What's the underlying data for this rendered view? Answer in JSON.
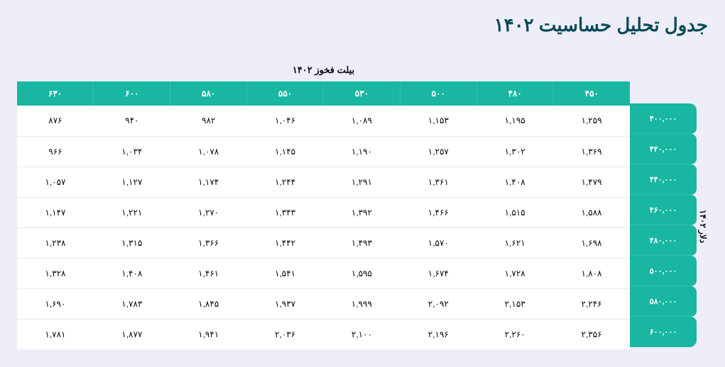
{
  "title": "جدول تحلیل حساسیت ۱۴۰۲",
  "axis_top": "بیلت فخوز ۱۴۰۲",
  "axis_side": "دلار ۱۴۰۲",
  "colors": {
    "background": "#eeeef8",
    "header_bg": "#19b6a1",
    "header_border": "#34c0ad",
    "cell_bg": "#ffffff",
    "cell_border": "#e6e6f0",
    "title_color": "#094a59",
    "text_color": "#0d0d0d"
  },
  "col_headers": [
    "۴۵۰",
    "۴۸۰",
    "۵۰۰",
    "۵۳۰",
    "۵۵۰",
    "۵۸۰",
    "۶۰۰",
    "۶۳۰"
  ],
  "row_headers": [
    "۴۰۰,۰۰۰",
    "۴۲۰,۰۰۰",
    "۴۴۰,۰۰۰",
    "۴۶۰,۰۰۰",
    "۴۸۰,۰۰۰",
    "۵۰۰,۰۰۰",
    "۵۸۰,۰۰۰",
    "۶۰۰,۰۰۰"
  ],
  "rows": [
    [
      "۱,۲۵۹",
      "۱,۱۹۵",
      "۱,۱۵۳",
      "۱,۰۸۹",
      "۱,۰۴۶",
      "۹۸۲",
      "۹۴۰",
      "۸۷۶"
    ],
    [
      "۱,۳۶۹",
      "۱,۳۰۲",
      "۱,۲۵۷",
      "۱,۱۹۰",
      "۱,۱۴۵",
      "۱,۰۷۸",
      "۱,۰۳۴",
      "۹۶۶"
    ],
    [
      "۱,۴۷۹",
      "۱,۴۰۸",
      "۱,۳۶۱",
      "۱,۲۹۱",
      "۱,۲۴۴",
      "۱,۱۷۴",
      "۱,۱۲۷",
      "۱,۰۵۷"
    ],
    [
      "۱,۵۸۸",
      "۱,۵۱۵",
      "۱,۴۶۶",
      "۱,۳۹۲",
      "۱,۳۴۳",
      "۱,۲۷۰",
      "۱,۲۲۱",
      "۱,۱۴۷"
    ],
    [
      "۱,۶۹۸",
      "۱,۶۲۱",
      "۱,۵۷۰",
      "۱,۴۹۳",
      "۱,۴۴۲",
      "۱,۳۶۶",
      "۱,۳۱۵",
      "۱,۲۳۸"
    ],
    [
      "۱,۸۰۸",
      "۱,۷۲۸",
      "۱,۶۷۴",
      "۱,۵۹۵",
      "۱,۵۴۱",
      "۱,۴۶۱",
      "۱,۴۰۸",
      "۱,۳۲۸"
    ],
    [
      "۲,۲۴۶",
      "۲,۱۵۳",
      "۲,۰۹۲",
      "۱,۹۹۹",
      "۱,۹۳۷",
      "۱,۸۴۵",
      "۱,۷۸۳",
      "۱,۶۹۰"
    ],
    [
      "۲,۳۵۶",
      "۲,۲۶۰",
      "۲,۱۹۶",
      "۲,۱۰۰",
      "۲,۰۳۶",
      "۱,۹۴۱",
      "۱,۸۷۷",
      "۱,۷۸۱"
    ]
  ]
}
